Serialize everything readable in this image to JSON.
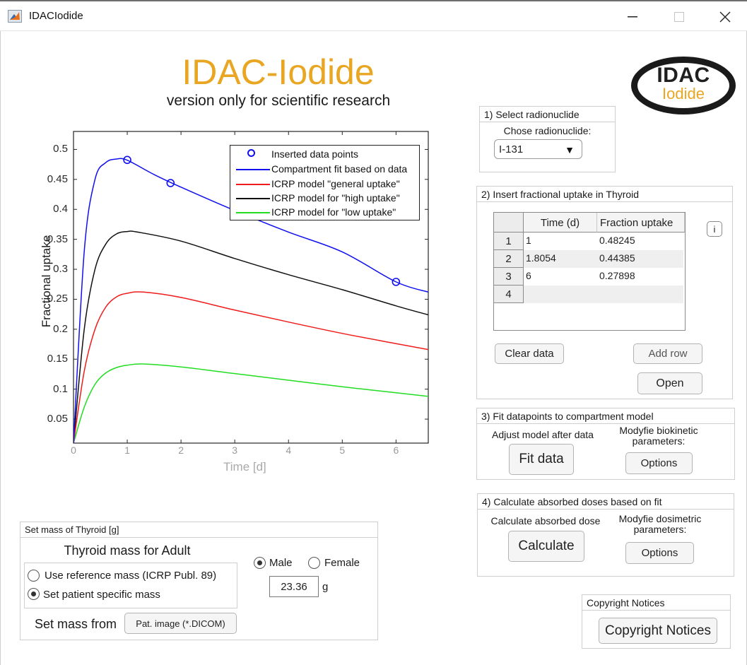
{
  "window": {
    "title": "IDACIodide",
    "controls": [
      "minimize",
      "maximize",
      "close"
    ]
  },
  "header": {
    "title": "IDAC-Iodide",
    "subtitle": "version only for scientific research",
    "logo_top": "IDAC",
    "logo_bottom": "Iodide",
    "accent_color": "#e9a623"
  },
  "chart_data": {
    "type": "line",
    "title": "",
    "xlabel": "Time [d]",
    "ylabel": "Fractional uptake",
    "xlim": [
      0,
      6.6
    ],
    "ylim": [
      0.01,
      0.53
    ],
    "x_ticks": [
      "0",
      "1",
      "2",
      "3",
      "4",
      "5",
      "6"
    ],
    "y_ticks": [
      "0.05",
      "0.1",
      "0.15",
      "0.2",
      "0.25",
      "0.3",
      "0.35",
      "0.4",
      "0.45",
      "0.5"
    ],
    "grid": false,
    "legend_position": "top-right inside",
    "legend": [
      "Inserted data points",
      "Compartment fit based on data",
      "ICRP model \"general uptake\"",
      "ICRP model for \"high uptake\"",
      "ICRP model for \"low uptake\""
    ],
    "series": [
      {
        "name": "Inserted data points",
        "style": "marker-circle",
        "color": "#1010ee",
        "x": [
          1,
          1.8054,
          6
        ],
        "y": [
          0.48245,
          0.44385,
          0.27898
        ]
      },
      {
        "name": "Compartment fit based on data",
        "color": "#1010ee",
        "x": [
          0,
          0.2,
          0.4,
          0.6,
          0.8,
          1.0,
          1.5,
          2,
          3,
          4,
          5,
          6,
          6.6
        ],
        "y": [
          0.01,
          0.33,
          0.45,
          0.478,
          0.484,
          0.482,
          0.458,
          0.437,
          0.398,
          0.362,
          0.329,
          0.279,
          0.262
        ]
      },
      {
        "name": "ICRP model \"general uptake\"",
        "color": "#ee1c1c",
        "x": [
          0,
          0.2,
          0.4,
          0.6,
          0.8,
          1.0,
          1.3,
          2,
          3,
          4,
          5,
          6,
          6.6
        ],
        "y": [
          0.01,
          0.13,
          0.2,
          0.237,
          0.254,
          0.26,
          0.262,
          0.253,
          0.232,
          0.212,
          0.193,
          0.176,
          0.166
        ]
      },
      {
        "name": "ICRP model for \"high uptake\"",
        "color": "#111111",
        "x": [
          0,
          0.2,
          0.4,
          0.6,
          0.8,
          1.0,
          1.2,
          2,
          3,
          4,
          5,
          6,
          6.6
        ],
        "y": [
          0.01,
          0.2,
          0.3,
          0.342,
          0.359,
          0.363,
          0.362,
          0.347,
          0.318,
          0.291,
          0.266,
          0.239,
          0.224
        ]
      },
      {
        "name": "ICRP model for \"low uptake\"",
        "color": "#22dd22",
        "x": [
          0,
          0.2,
          0.4,
          0.6,
          0.8,
          1.0,
          1.3,
          2,
          3,
          4,
          5,
          6,
          6.6
        ],
        "y": [
          0.01,
          0.07,
          0.108,
          0.127,
          0.136,
          0.14,
          0.142,
          0.137,
          0.126,
          0.115,
          0.104,
          0.094,
          0.088
        ]
      }
    ]
  },
  "panel_radionuclide": {
    "title": "1) Select radionuclide",
    "label": "Chose radionuclide:",
    "selected": "I-131",
    "arrow": "▼"
  },
  "panel_uptake": {
    "title": "2) Insert fractional uptake in Thyroid",
    "columns": [
      "Time (d)",
      "Fraction uptake"
    ],
    "rows": [
      {
        "index": "1",
        "time": "1",
        "fraction": "0.48245"
      },
      {
        "index": "2",
        "time": "1.8054",
        "fraction": "0.44385"
      },
      {
        "index": "3",
        "time": "6",
        "fraction": "0.27898"
      },
      {
        "index": "4",
        "time": "",
        "fraction": ""
      }
    ],
    "info_label": "i",
    "clear_label": "Clear data",
    "add_row_label": "Add row",
    "open_label": "Open"
  },
  "panel_fit": {
    "title": "3) Fit datapoints to compartment model",
    "left_label": "Adjust model after data",
    "right_label": "Modyfie biokinetic parameters:",
    "fit_label": "Fit data",
    "options_label": "Options"
  },
  "panel_dose": {
    "title": "4) Calculate absorbed doses based on fit",
    "left_label": "Calculate absorbed dose",
    "right_label": "Modyfie dosimetric parameters:",
    "calculate_label": "Calculate",
    "options_label": "Options"
  },
  "panel_mass": {
    "title": "Set mass of Thyroid [g]",
    "heading": "Thyroid mass for Adult",
    "option_reference": "Use reference mass (ICRP Publ. 89)",
    "option_patient": "Set patient specific mass",
    "selected_option": "patient",
    "sex_male": "Male",
    "sex_female": "Female",
    "selected_sex": "Male",
    "mass_value": "23.36",
    "mass_unit": "g",
    "set_from_label": "Set mass from",
    "dicom_button": "Pat. image (*.DICOM)"
  },
  "panel_copyright": {
    "title": "Copyright Notices",
    "button": "Copyright Notices"
  }
}
